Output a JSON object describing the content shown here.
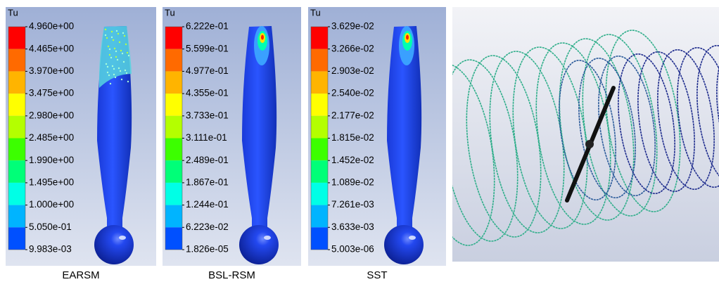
{
  "panels": [
    {
      "quantity": "Tu",
      "caption": "EARSM",
      "levels": [
        "4.960e+00",
        "4.465e+00",
        "3.970e+00",
        "3.475e+00",
        "2.980e+00",
        "2.485e+00",
        "1.990e+00",
        "1.495e+00",
        "1.000e+00",
        "5.050e-01",
        "9.983e-03"
      ]
    },
    {
      "quantity": "Tu",
      "caption": "BSL-RSM",
      "levels": [
        "6.222e-01",
        "5.599e-01",
        "4.977e-01",
        "4.355e-01",
        "3.733e-01",
        "3.111e-01",
        "2.489e-01",
        "1.867e-01",
        "1.244e-01",
        "6.223e-02",
        "1.826e-05"
      ]
    },
    {
      "quantity": "Tu",
      "caption": "SST",
      "levels": [
        "3.629e-02",
        "3.266e-02",
        "2.903e-02",
        "2.540e-02",
        "2.177e-02",
        "1.815e-02",
        "1.452e-02",
        "1.089e-02",
        "7.261e-03",
        "3.633e-03",
        "5.003e-06"
      ]
    }
  ]
}
